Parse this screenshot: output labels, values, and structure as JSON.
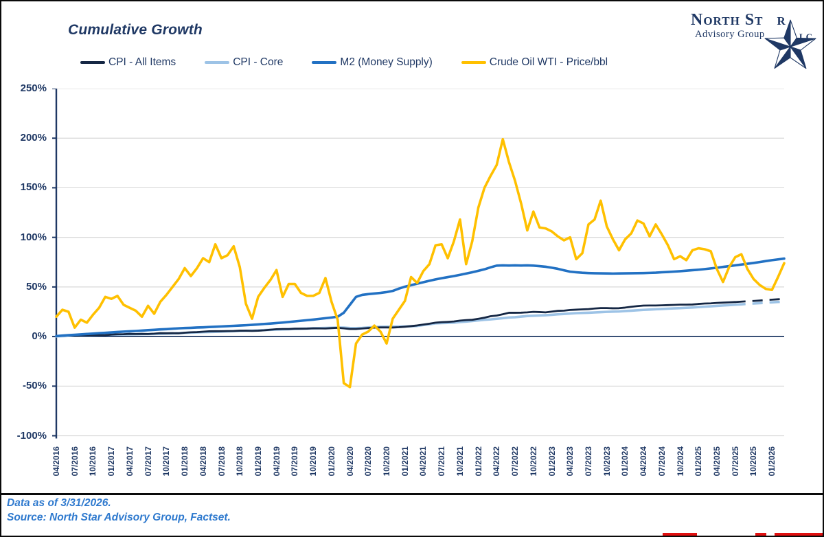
{
  "page": {
    "title": "Cumulative Growth",
    "footer_line1": "Data as of 3/31/2026.",
    "footer_line2": "Source: North Star Advisory Group, Factset."
  },
  "logo": {
    "name_first": "North St",
    "name_last": "r",
    "subtitle": "Advisory Group",
    "suffix": "LLC"
  },
  "colors": {
    "navy_text": "#1F3864",
    "grid": "#D9D9D9",
    "zero_line": "#1F3864",
    "axis": "#1F3864",
    "footer_blue": "#2E79CE"
  },
  "chart_data": {
    "type": "line",
    "title": "Cumulative Growth",
    "x_unit": "monthly, Apr 2016 - Mar 2026",
    "ylim": [
      -100,
      250
    ],
    "grid": "horizontal",
    "legend_position": "top",
    "y_tick_labels": [
      "250%",
      "200%",
      "150%",
      "100%",
      "50%",
      "0%",
      "-50%",
      "-100%"
    ],
    "x_tick_labels": [
      "04/2016",
      "07/2016",
      "10/2016",
      "01/2017",
      "04/2017",
      "07/2017",
      "10/2017",
      "01/2018",
      "04/2018",
      "07/2018",
      "10/2018",
      "01/2019",
      "04/2019",
      "07/2019",
      "10/2019",
      "01/2020",
      "04/2020",
      "07/2020",
      "10/2020",
      "01/2021",
      "04/2021",
      "07/2021",
      "10/2021",
      "01/2022",
      "04/2022",
      "07/2022",
      "10/2022",
      "01/2023",
      "04/2023",
      "07/2023",
      "10/2023",
      "01/2024",
      "04/2024",
      "07/2024",
      "10/2024",
      "01/2025",
      "04/2025",
      "07/2025",
      "10/2025",
      "01/2026"
    ],
    "series": [
      {
        "name": "CPI - All Items",
        "color": "#152744",
        "width": 2.8,
        "dashed_tail_from_index": 111,
        "values": [
          0.4,
          0.8,
          1.1,
          0.9,
          1,
          1.2,
          1.4,
          1.3,
          1.4,
          2,
          2.3,
          2.4,
          2.7,
          2.6,
          2.7,
          2.6,
          2.9,
          3.4,
          3.3,
          3.4,
          3.3,
          3.9,
          4.3,
          4.5,
          4.9,
          5.3,
          5.4,
          5.4,
          5.5,
          5.6,
          5.9,
          5.9,
          5.7,
          5.9,
          6.3,
          6.9,
          7.4,
          7.6,
          7.6,
          7.9,
          7.9,
          8,
          8.3,
          8.2,
          8.1,
          8.5,
          8.8,
          8.3,
          7.6,
          7.6,
          8.1,
          8.6,
          9,
          9.2,
          9.2,
          9.1,
          9.4,
          9.9,
          10.5,
          11.2,
          12.1,
          13,
          14,
          14.5,
          14.8,
          15.2,
          16.1,
          16.6,
          16.9,
          17.9,
          19,
          20.5,
          21.2,
          22.5,
          24,
          24,
          24.1,
          24.4,
          24.9,
          24.7,
          24.4,
          25.2,
          25.9,
          26.1,
          26.8,
          27.1,
          27.4,
          27.7,
          28.3,
          28.7,
          28.7,
          28.5,
          28.6,
          29.2,
          30,
          30.7,
          31.2,
          31.3,
          31.3,
          31.5,
          31.7,
          31.9,
          32.2,
          32.2,
          32.3,
          32.9,
          33.3,
          33.5,
          33.9,
          34.2,
          34.5,
          34.8,
          35.2,
          35.6,
          35.9,
          36.3,
          36.8,
          37.2,
          37.6,
          38
        ]
      },
      {
        "name": "CPI - Core",
        "color": "#9DC3E6",
        "width": 3.6,
        "dashed_tail_from_index": 111,
        "values": [
          0.2,
          0.4,
          0.6,
          0.8,
          0.9,
          1.1,
          1.2,
          1.3,
          1.5,
          1.8,
          2,
          2.1,
          2.2,
          2.3,
          2.4,
          2.5,
          2.6,
          2.8,
          3,
          3.1,
          3.3,
          3.7,
          4,
          4.2,
          4.4,
          4.6,
          4.8,
          5,
          5.2,
          5.4,
          5.6,
          5.8,
          6,
          6.2,
          6.5,
          6.8,
          7,
          7.2,
          7.4,
          7.7,
          7.9,
          8.1,
          8.3,
          8.5,
          8.7,
          8.9,
          9.1,
          9,
          8.6,
          8.5,
          8.7,
          9.2,
          9.6,
          9.8,
          9.9,
          10,
          10.1,
          10.2,
          10.4,
          10.7,
          11.6,
          12.4,
          13.3,
          13.6,
          13.8,
          14,
          14.6,
          15.1,
          15.7,
          16.3,
          16.9,
          17.3,
          17.9,
          18.5,
          19.2,
          19.5,
          20.1,
          20.7,
          21,
          21.2,
          21.5,
          21.9,
          22.4,
          22.8,
          23.2,
          23.6,
          23.8,
          24,
          24.3,
          24.6,
          24.9,
          25.1,
          25.3,
          25.7,
          26.1,
          26.5,
          26.9,
          27.2,
          27.5,
          27.8,
          28.1,
          28.4,
          28.7,
          29,
          29.3,
          29.7,
          30.1,
          30.5,
          30.9,
          31.3,
          31.7,
          32.1,
          32.5,
          32.9,
          33.3,
          33.7,
          34.1,
          34.5,
          34.9,
          35.3
        ]
      },
      {
        "name": "M2 (Money Supply)",
        "color": "#2271C3",
        "width": 3.6,
        "values": [
          0.5,
          1,
          1.4,
          1.8,
          2.2,
          2.6,
          3,
          3.4,
          3.8,
          4.2,
          4.6,
          5,
          5.3,
          5.6,
          6,
          6.4,
          6.8,
          7.2,
          7.5,
          7.9,
          8.3,
          8.6,
          8.8,
          9.1,
          9.3,
          9.6,
          9.9,
          10.2,
          10.5,
          10.8,
          11.1,
          11.4,
          11.8,
          12.2,
          12.7,
          13.1,
          13.6,
          14.1,
          14.7,
          15.3,
          15.9,
          16.5,
          17.1,
          17.8,
          18.5,
          19.2,
          20,
          24,
          32,
          40,
          42,
          42.8,
          43.4,
          44,
          44.8,
          46,
          48.3,
          50.3,
          51.8,
          53.3,
          54.8,
          56.2,
          57.6,
          58.8,
          59.9,
          61,
          62.2,
          63.5,
          64.8,
          66.3,
          67.8,
          69.8,
          71.5,
          71.8,
          71.6,
          71.8,
          71.6,
          71.8,
          71.5,
          71,
          70.4,
          69.4,
          68.3,
          66.8,
          65.4,
          64.8,
          64.3,
          64,
          63.8,
          63.7,
          63.6,
          63.5,
          63.6,
          63.7,
          63.8,
          63.9,
          64,
          64.2,
          64.4,
          64.8,
          65.1,
          65.5,
          65.9,
          66.4,
          66.9,
          67.4,
          68,
          68.7,
          69.4,
          70.2,
          71,
          71.8,
          72.6,
          73.4,
          74.2,
          75.1,
          76.1,
          77,
          77.8,
          78.6
        ]
      },
      {
        "name": "Crude Oil WTI - Price/bbl",
        "color": "#FFC000",
        "width": 3.6,
        "values": [
          20,
          27,
          25,
          9,
          17,
          14,
          22,
          29,
          40,
          38,
          41,
          32,
          29,
          26,
          20,
          31,
          23,
          35,
          42,
          50,
          58,
          69,
          61,
          69,
          79,
          75,
          93,
          79,
          82,
          91,
          70,
          33,
          18,
          40,
          49,
          57,
          67,
          40,
          53,
          53,
          44,
          41,
          41,
          44,
          59,
          35,
          17,
          -47,
          -51,
          -7,
          2,
          5,
          11,
          5,
          -7,
          18,
          27,
          36,
          60,
          54,
          66,
          73,
          92,
          93,
          79,
          96,
          118,
          73,
          96,
          130,
          150,
          162,
          173,
          199,
          176,
          157,
          134,
          107,
          126,
          110,
          109,
          106,
          101,
          97,
          100,
          78,
          84,
          113,
          118,
          137,
          111,
          98,
          87,
          98,
          104,
          117,
          114,
          101,
          113,
          103,
          92,
          78,
          81,
          77,
          87,
          89,
          88,
          86,
          68,
          55,
          70,
          80,
          83,
          68,
          58,
          52,
          48,
          47,
          60,
          74
        ]
      }
    ]
  }
}
